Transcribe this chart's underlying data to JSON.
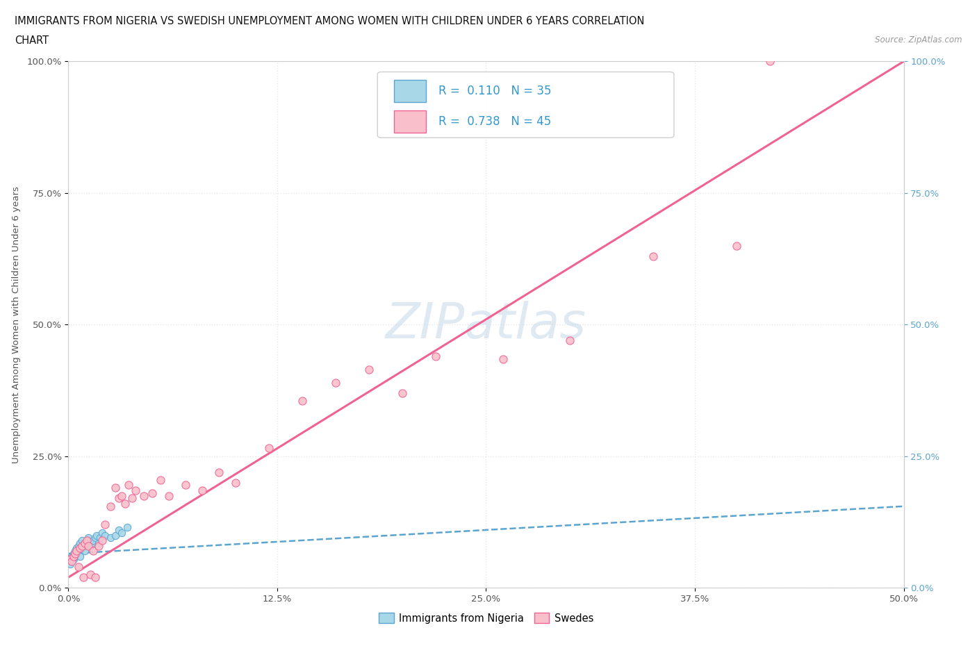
{
  "title_line1": "IMMIGRANTS FROM NIGERIA VS SWEDISH UNEMPLOYMENT AMONG WOMEN WITH CHILDREN UNDER 6 YEARS CORRELATION",
  "title_line2": "CHART",
  "source_text": "Source: ZipAtlas.com",
  "ylabel": "Unemployment Among Women with Children Under 6 years",
  "xlim": [
    0.0,
    0.5
  ],
  "ylim": [
    0.0,
    1.0
  ],
  "xtick_labels": [
    "0.0%",
    "12.5%",
    "25.0%",
    "37.5%",
    "50.0%"
  ],
  "xtick_vals": [
    0.0,
    0.125,
    0.25,
    0.375,
    0.5
  ],
  "ytick_labels": [
    "0.0%",
    "25.0%",
    "50.0%",
    "75.0%",
    "100.0%"
  ],
  "ytick_vals": [
    0.0,
    0.25,
    0.5,
    0.75,
    1.0
  ],
  "legend_labels": [
    "Immigrants from Nigeria",
    "Swedes"
  ],
  "blue_R": "0.110",
  "blue_N": "35",
  "pink_R": "0.738",
  "pink_N": "45",
  "series_blue": {
    "x": [
      0.001,
      0.001,
      0.002,
      0.002,
      0.003,
      0.003,
      0.004,
      0.004,
      0.005,
      0.005,
      0.006,
      0.006,
      0.007,
      0.007,
      0.008,
      0.008,
      0.009,
      0.01,
      0.01,
      0.011,
      0.012,
      0.013,
      0.014,
      0.015,
      0.016,
      0.017,
      0.018,
      0.019,
      0.02,
      0.022,
      0.025,
      0.028,
      0.03,
      0.032,
      0.035
    ],
    "y": [
      0.055,
      0.045,
      0.06,
      0.05,
      0.065,
      0.055,
      0.07,
      0.06,
      0.075,
      0.065,
      0.08,
      0.07,
      0.085,
      0.06,
      0.09,
      0.075,
      0.08,
      0.085,
      0.07,
      0.09,
      0.095,
      0.08,
      0.085,
      0.09,
      0.095,
      0.1,
      0.085,
      0.095,
      0.105,
      0.1,
      0.095,
      0.1,
      0.11,
      0.105,
      0.115
    ],
    "color": "#A8D8E8",
    "edge_color": "#5BA4CF",
    "trend_color": "#5BA4CF",
    "trend_style": "--",
    "trend_x0": 0.0,
    "trend_y0": 0.065,
    "trend_x1": 0.5,
    "trend_y1": 0.155
  },
  "series_pink": {
    "x": [
      0.001,
      0.002,
      0.003,
      0.004,
      0.005,
      0.006,
      0.007,
      0.008,
      0.009,
      0.01,
      0.011,
      0.012,
      0.013,
      0.015,
      0.016,
      0.018,
      0.02,
      0.022,
      0.025,
      0.028,
      0.03,
      0.032,
      0.034,
      0.036,
      0.038,
      0.04,
      0.045,
      0.05,
      0.055,
      0.06,
      0.07,
      0.08,
      0.09,
      0.1,
      0.12,
      0.14,
      0.16,
      0.18,
      0.2,
      0.22,
      0.26,
      0.3,
      0.35,
      0.4,
      0.42
    ],
    "y": [
      0.055,
      0.05,
      0.06,
      0.065,
      0.07,
      0.04,
      0.075,
      0.08,
      0.02,
      0.085,
      0.09,
      0.08,
      0.025,
      0.07,
      0.02,
      0.08,
      0.09,
      0.12,
      0.155,
      0.19,
      0.17,
      0.175,
      0.16,
      0.195,
      0.17,
      0.185,
      0.175,
      0.18,
      0.205,
      0.175,
      0.195,
      0.185,
      0.22,
      0.2,
      0.265,
      0.355,
      0.39,
      0.415,
      0.37,
      0.44,
      0.435,
      0.47,
      0.63,
      0.65,
      1.0
    ],
    "color": "#F9C0CB",
    "edge_color": "#F06292",
    "trend_color": "#F06292",
    "trend_style": "-",
    "trend_x0": 0.0,
    "trend_y0": 0.02,
    "trend_x1": 0.5,
    "trend_y1": 1.0
  },
  "watermark_text": "ZIPatlas",
  "watermark_color": "#C5D8E8",
  "background_color": "#FFFFFF",
  "grid_color": "#E8E8E8",
  "grid_style": ":"
}
